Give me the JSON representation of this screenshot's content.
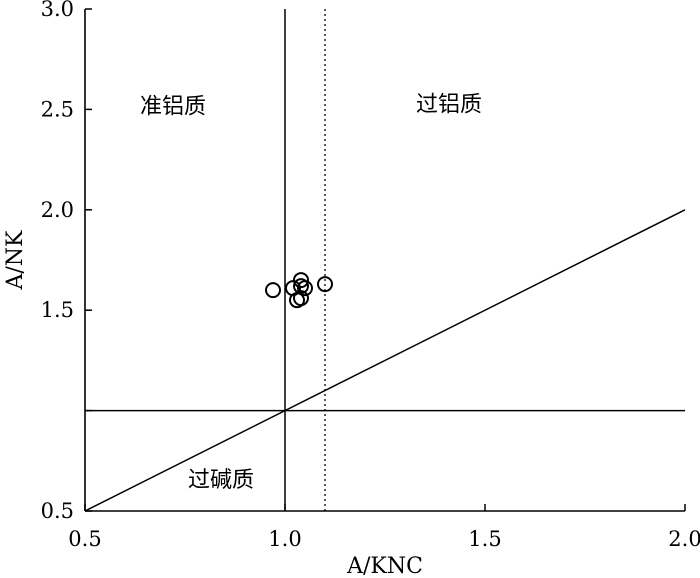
{
  "chart_data": {
    "type": "scatter",
    "xlabel": "A/KNC",
    "ylabel": "A/NK",
    "xlim": [
      0.5,
      2.0
    ],
    "ylim": [
      0.5,
      3.0
    ],
    "x_ticks": [
      {
        "value": 0.5,
        "label": "0.5"
      },
      {
        "value": 1.0,
        "label": "1.0"
      },
      {
        "value": 1.5,
        "label": "1.5"
      },
      {
        "value": 2.0,
        "label": "2.0"
      }
    ],
    "y_ticks": [
      {
        "value": 0.5,
        "label": "0.5"
      },
      {
        "value": 1.5,
        "label": "1.5"
      },
      {
        "value": 2.0,
        "label": "2.0"
      },
      {
        "value": 2.5,
        "label": "2.5"
      },
      {
        "value": 3.0,
        "label": "3.0"
      }
    ],
    "y_minor_ticks": [
      1.0
    ],
    "grid": false,
    "reference_lines": [
      {
        "kind": "vertical",
        "x": 1.0,
        "style": "solid"
      },
      {
        "kind": "vertical",
        "x": 1.1,
        "style": "dotted"
      },
      {
        "kind": "horizontal",
        "y": 1.0,
        "style": "solid"
      },
      {
        "kind": "diagonal",
        "from": [
          0.5,
          0.5
        ],
        "to": [
          2.0,
          2.0
        ],
        "style": "solid"
      }
    ],
    "regions": [
      {
        "label": "准铝质",
        "x": 0.72,
        "y": 2.48
      },
      {
        "label": "过铝质",
        "x": 1.41,
        "y": 2.49
      },
      {
        "label": "过碱质",
        "x": 0.84,
        "y": 0.62
      }
    ],
    "points": [
      {
        "x": 0.97,
        "y": 1.6
      },
      {
        "x": 1.02,
        "y": 1.61
      },
      {
        "x": 1.04,
        "y": 1.65
      },
      {
        "x": 1.04,
        "y": 1.62
      },
      {
        "x": 1.05,
        "y": 1.61
      },
      {
        "x": 1.03,
        "y": 1.55
      },
      {
        "x": 1.04,
        "y": 1.56
      },
      {
        "x": 1.1,
        "y": 1.63
      }
    ]
  }
}
